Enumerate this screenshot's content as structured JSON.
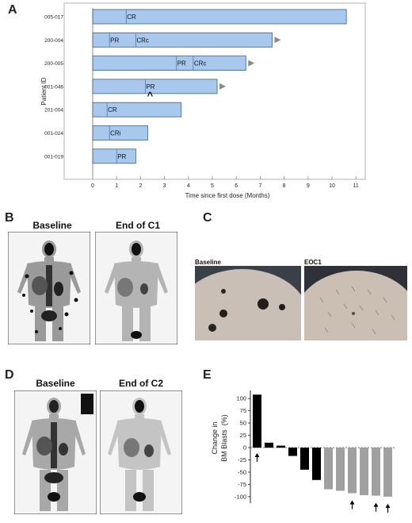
{
  "panels": {
    "a": "A",
    "b": "B",
    "c": "C",
    "d": "D",
    "e": "E"
  },
  "colors": {
    "swimlane_bar": "#a8c8ee",
    "swimlane_stroke": "#3a5f8a",
    "arrowhead": "#8a8a8a",
    "waterfall_black": "#000000",
    "waterfall_gray": "#a0a0a0"
  },
  "chart_data": [
    {
      "type": "bar",
      "orientation": "horizontal",
      "ylabel": "Patient ID",
      "xlabel": "Time since first dose (Months)",
      "xlim": [
        0,
        11.5
      ],
      "x_ticks": [
        "0",
        "1",
        "2",
        "3",
        "4",
        "5",
        "6",
        "7",
        "8",
        "9",
        "10",
        "11"
      ],
      "categories": [
        "005-017",
        "200-004",
        "200-005",
        "001-046",
        "201-004",
        "001-024",
        "001-019"
      ],
      "values": [
        10.6,
        7.5,
        6.4,
        5.2,
        3.7,
        2.3,
        1.8
      ],
      "ongoing": [
        false,
        true,
        true,
        true,
        false,
        false,
        false
      ],
      "events": [
        [
          {
            "label": "CR",
            "t": 1.4
          }
        ],
        [
          {
            "label": "PR",
            "t": 0.7
          },
          {
            "label": "CRc",
            "t": 1.8
          }
        ],
        [
          {
            "label": "PR",
            "t": 3.5
          },
          {
            "label": "CRc",
            "t": 4.2
          }
        ],
        [
          {
            "label": "PR",
            "t": 2.2
          }
        ],
        [
          {
            "label": "CR",
            "t": 0.6
          }
        ],
        [
          {
            "label": "CRi",
            "t": 0.7
          }
        ],
        [
          {
            "label": "PR",
            "t": 1.0
          }
        ]
      ],
      "caret_marker": {
        "row": "001-046",
        "t": 2.4,
        "glyph": "^"
      }
    },
    {
      "type": "bar",
      "ylabel": "Change in BM Blasts (%)",
      "ylim": [
        -110,
        110
      ],
      "y_ticks": [
        "100",
        "75",
        "50",
        "25",
        "0",
        "-25",
        "-50",
        "-75",
        "-100"
      ],
      "values": [
        108,
        10,
        4,
        -17,
        -45,
        -66,
        -85,
        -88,
        -93,
        -97,
        -98,
        -100
      ],
      "colors": [
        "black",
        "black",
        "black",
        "black",
        "black",
        "black",
        "gray",
        "gray",
        "gray",
        "gray",
        "gray",
        "gray"
      ],
      "arrow_indices": [
        0,
        8,
        10,
        11
      ]
    }
  ],
  "scans_b": {
    "baseline": "Baseline",
    "end": "End of C1"
  },
  "photos_c": {
    "baseline": "Baseline",
    "end": "EOC1"
  },
  "scans_d": {
    "baseline": "Baseline",
    "end": "End of C2"
  }
}
